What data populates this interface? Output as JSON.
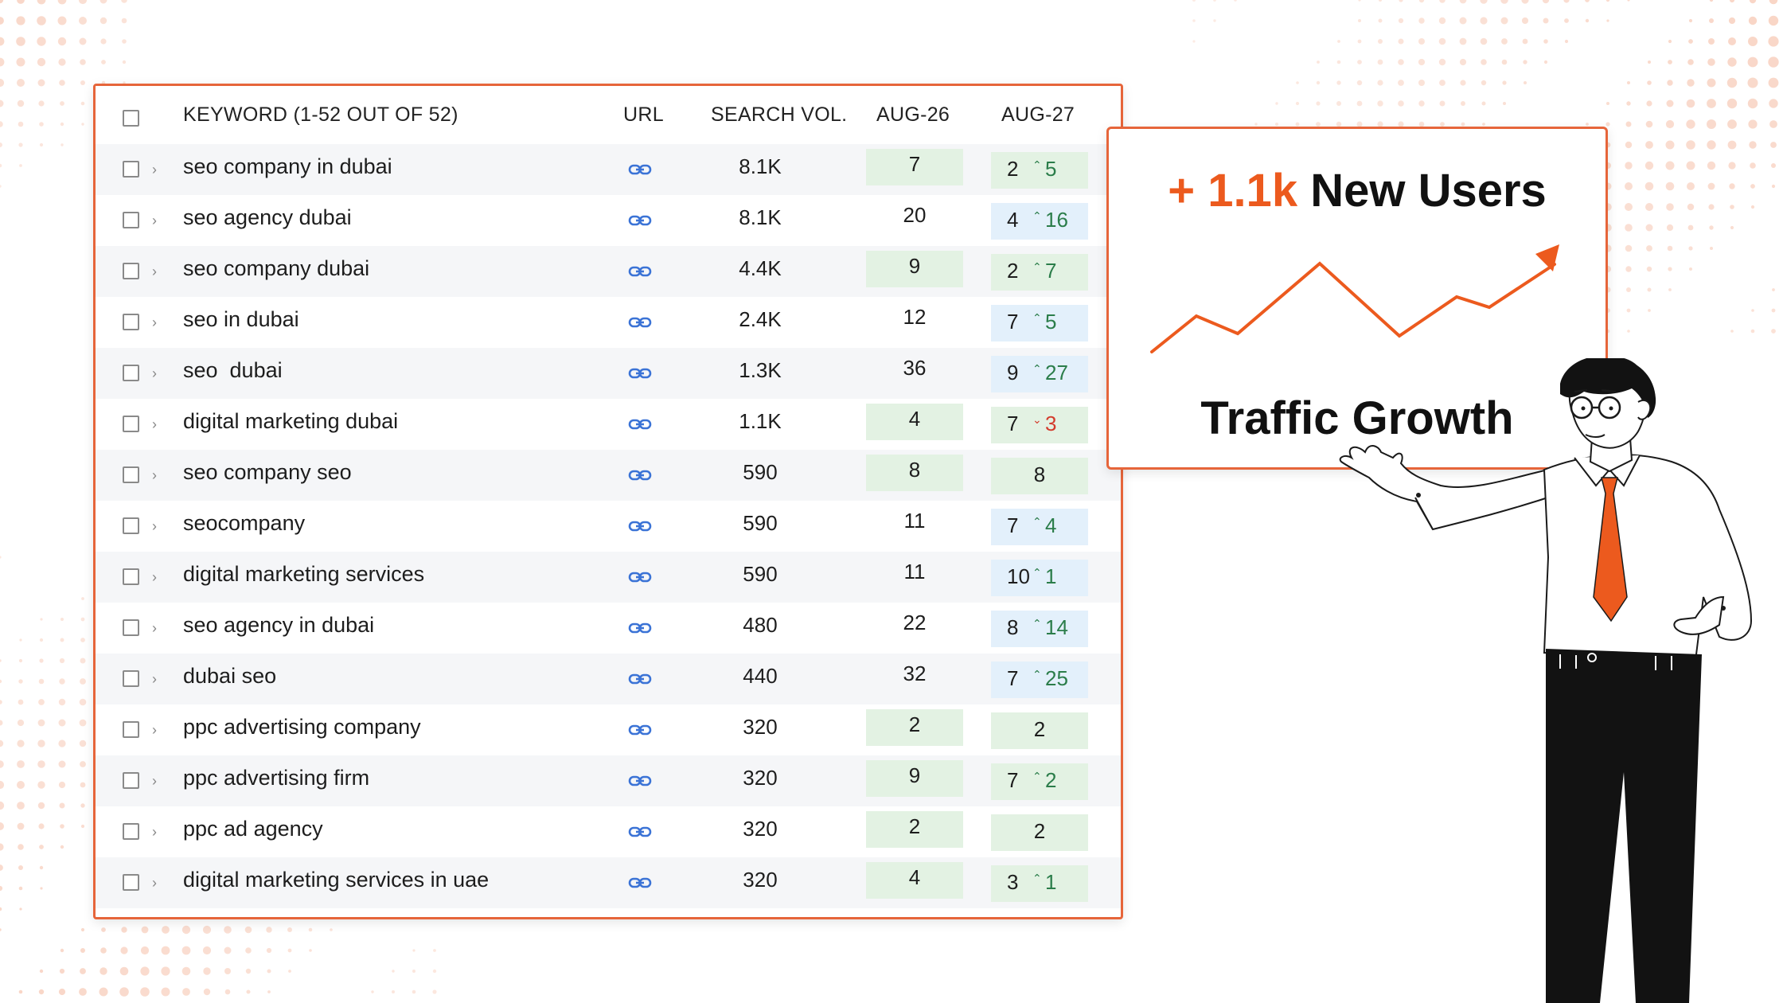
{
  "table": {
    "header": {
      "keyword": "KEYWORD (1-52 OUT OF 52)",
      "url": "URL",
      "search_vol": "SEARCH VOL.",
      "aug26": "AUG-26",
      "aug27": "AUG-27"
    },
    "rows": [
      {
        "keyword": "seo company in dubai",
        "volume": "8.1K",
        "aug26": "7",
        "aug26_style": "green",
        "aug27_current": "2",
        "aug27_change": "5",
        "aug27_trend": "up",
        "aug27_style": "green"
      },
      {
        "keyword": "seo agency dubai",
        "volume": "8.1K",
        "aug26": "20",
        "aug26_style": "none",
        "aug27_current": "4",
        "aug27_change": "16",
        "aug27_trend": "up",
        "aug27_style": "blue"
      },
      {
        "keyword": "seo company dubai",
        "volume": "4.4K",
        "aug26": "9",
        "aug26_style": "green",
        "aug27_current": "2",
        "aug27_change": "7",
        "aug27_trend": "up",
        "aug27_style": "green"
      },
      {
        "keyword": "seo in dubai",
        "volume": "2.4K",
        "aug26": "12",
        "aug26_style": "none",
        "aug27_current": "7",
        "aug27_change": "5",
        "aug27_trend": "up",
        "aug27_style": "blue"
      },
      {
        "keyword": "seo  dubai",
        "volume": "1.3K",
        "aug26": "36",
        "aug26_style": "none",
        "aug27_current": "9",
        "aug27_change": "27",
        "aug27_trend": "up",
        "aug27_style": "blue"
      },
      {
        "keyword": "digital marketing dubai",
        "volume": "1.1K",
        "aug26": "4",
        "aug26_style": "green",
        "aug27_current": "7",
        "aug27_change": "3",
        "aug27_trend": "down",
        "aug27_style": "green"
      },
      {
        "keyword": "seo company seo",
        "volume": "590",
        "aug26": "8",
        "aug26_style": "green",
        "aug27_current": "8",
        "aug27_change": "",
        "aug27_trend": "none",
        "aug27_style": "green"
      },
      {
        "keyword": "seocompany",
        "volume": "590",
        "aug26": "11",
        "aug26_style": "none",
        "aug27_current": "7",
        "aug27_change": "4",
        "aug27_trend": "up",
        "aug27_style": "blue"
      },
      {
        "keyword": "digital marketing services",
        "volume": "590",
        "aug26": "11",
        "aug26_style": "none",
        "aug27_current": "10",
        "aug27_change": "1",
        "aug27_trend": "up",
        "aug27_style": "blue"
      },
      {
        "keyword": "seo agency in dubai",
        "volume": "480",
        "aug26": "22",
        "aug26_style": "none",
        "aug27_current": "8",
        "aug27_change": "14",
        "aug27_trend": "up",
        "aug27_style": "blue"
      },
      {
        "keyword": "dubai seo",
        "volume": "440",
        "aug26": "32",
        "aug26_style": "none",
        "aug27_current": "7",
        "aug27_change": "25",
        "aug27_trend": "up",
        "aug27_style": "blue"
      },
      {
        "keyword": "ppc advertising company",
        "volume": "320",
        "aug26": "2",
        "aug26_style": "green",
        "aug27_current": "2",
        "aug27_change": "",
        "aug27_trend": "none",
        "aug27_style": "green"
      },
      {
        "keyword": "ppc advertising firm",
        "volume": "320",
        "aug26": "9",
        "aug26_style": "green",
        "aug27_current": "7",
        "aug27_change": "2",
        "aug27_trend": "up",
        "aug27_style": "green"
      },
      {
        "keyword": "ppc ad agency",
        "volume": "320",
        "aug26": "2",
        "aug26_style": "green",
        "aug27_current": "2",
        "aug27_change": "",
        "aug27_trend": "none",
        "aug27_style": "green"
      },
      {
        "keyword": "digital marketing services in uae",
        "volume": "320",
        "aug26": "4",
        "aug26_style": "green",
        "aug27_current": "3",
        "aug27_change": "1",
        "aug27_trend": "up",
        "aug27_style": "green"
      }
    ]
  },
  "card": {
    "plus": "+",
    "value": "1.1k",
    "users_label": "New Users",
    "title": "Traffic Growth"
  },
  "icons": {
    "row_toggle": "chevron-right-icon",
    "url": "link-icon",
    "trend_up": "caret-up-icon",
    "trend_down": "caret-down-icon",
    "growth": "trend-arrow-icon"
  },
  "colors": {
    "accent": "#ec5a1e",
    "panel_border": "#e6653a",
    "rank_green_bg": "#e3f2e3",
    "rank_blue_bg": "#e3f0fb",
    "trend_up": "#2b7d4a",
    "trend_down": "#d33b2c",
    "link_icon": "#3b73d6"
  }
}
